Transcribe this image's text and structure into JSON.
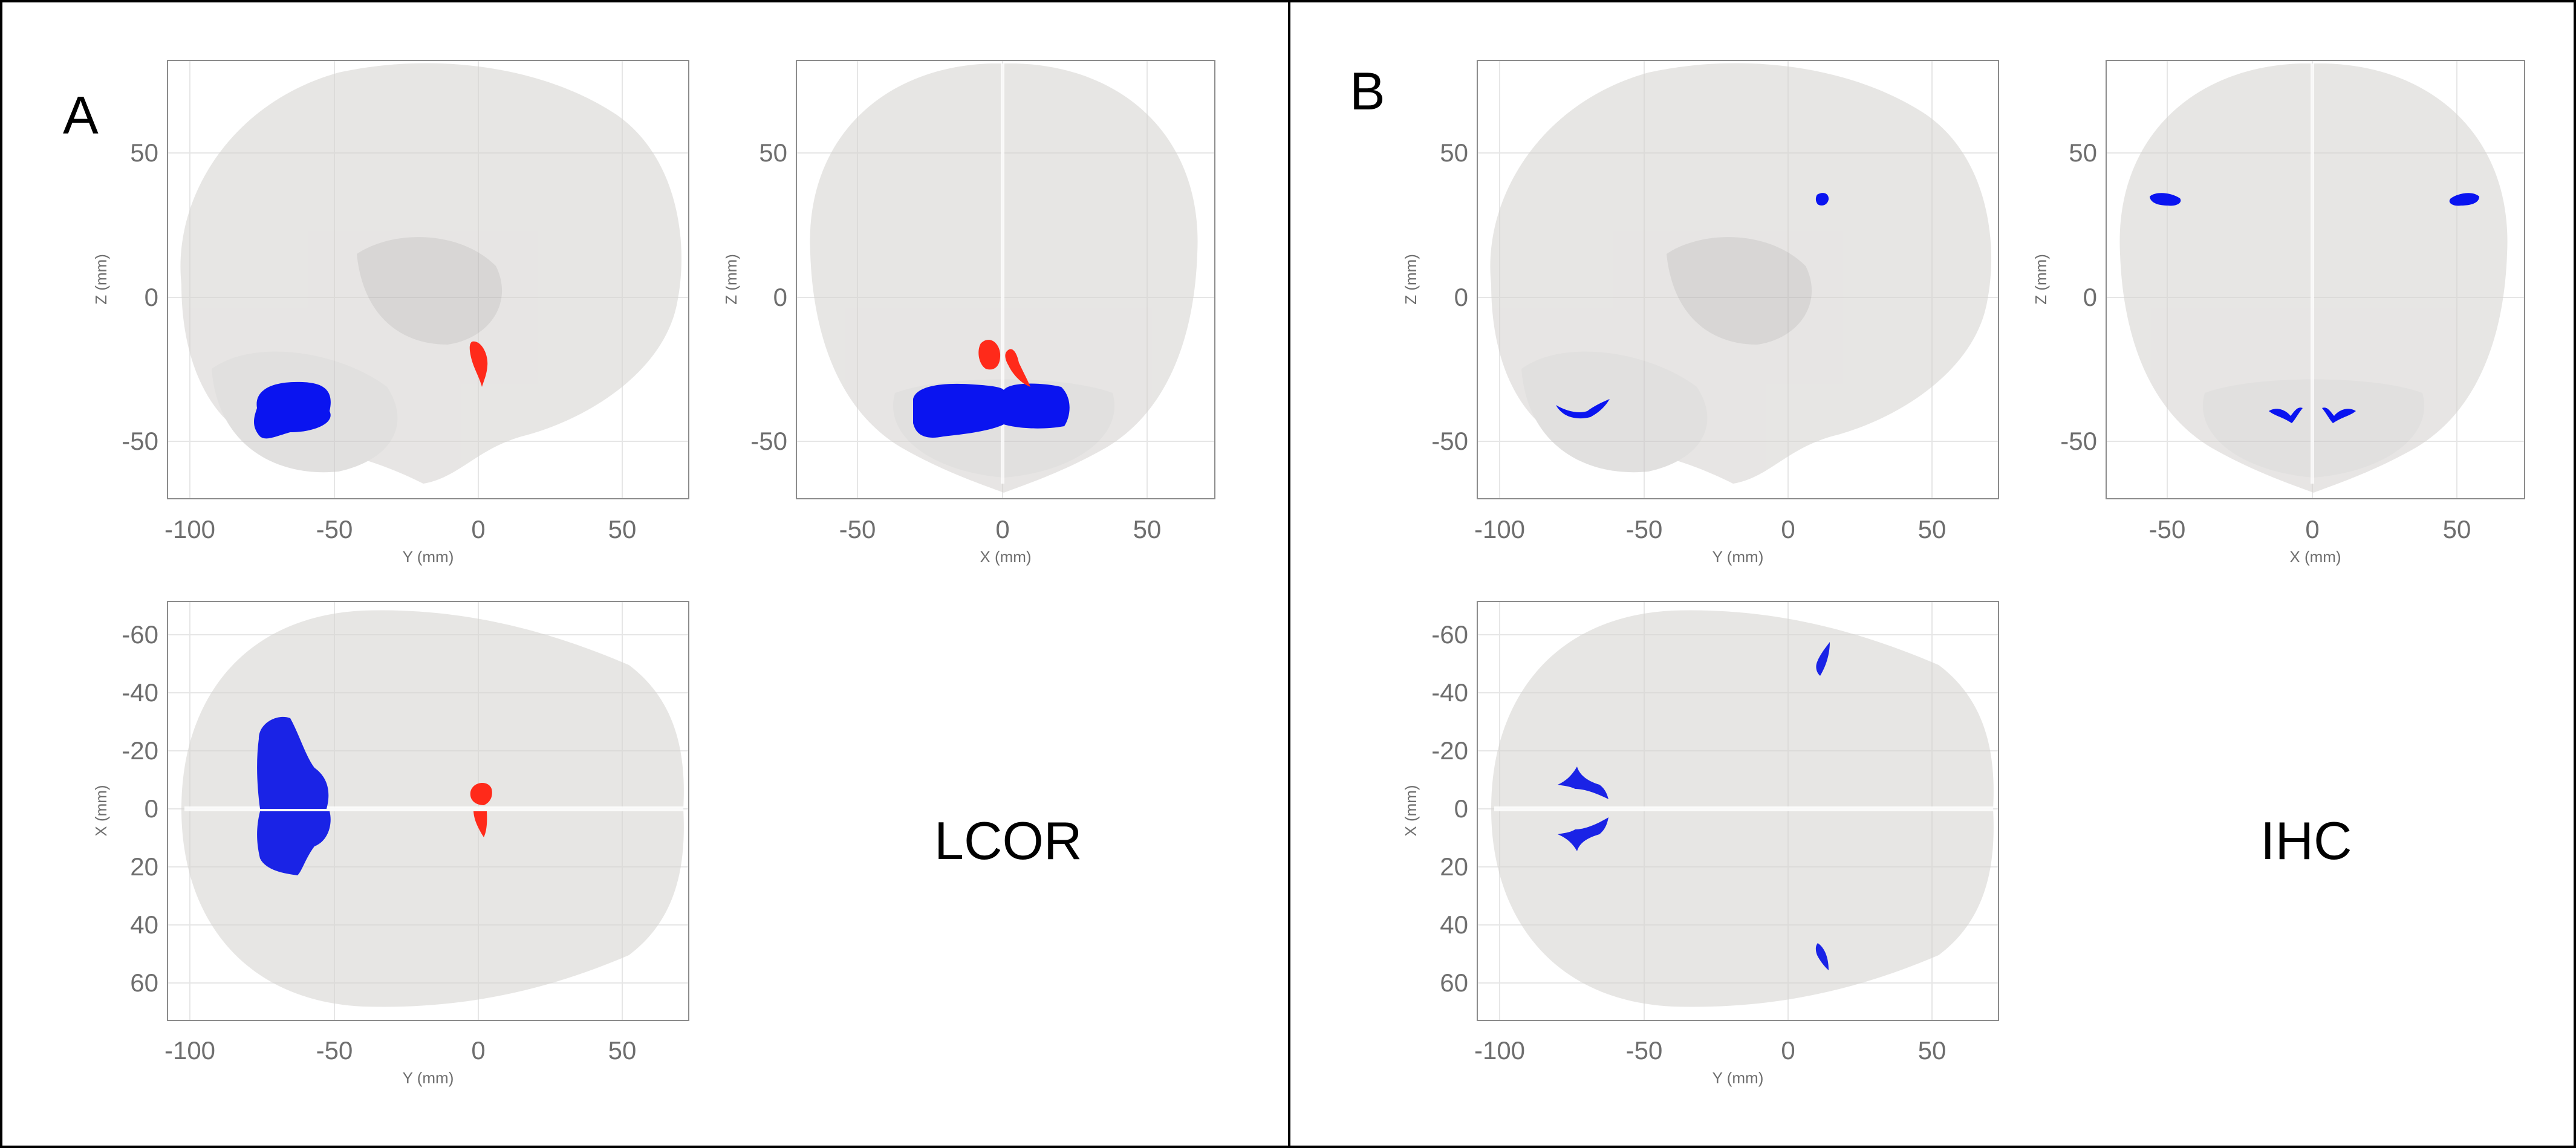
{
  "panels": [
    {
      "letter": "A",
      "condition": "LCOR",
      "views": {
        "sagittal": {
          "xlabel": "Y (mm)",
          "ylabel": "Z (mm)",
          "xticks": [
            "-100",
            "-50",
            "0",
            "50"
          ],
          "yticks": [
            "50",
            "0",
            "-50"
          ]
        },
        "coronal": {
          "xlabel": "X (mm)",
          "ylabel": "Z (mm)",
          "xticks": [
            "-50",
            "0",
            "50"
          ],
          "yticks": [
            "50",
            "0",
            "-50"
          ]
        },
        "axial": {
          "xlabel": "Y (mm)",
          "ylabel": "X (mm)",
          "xticks": [
            "-100",
            "-50",
            "0",
            "50"
          ],
          "yticks": [
            "-60",
            "-40",
            "-20",
            "0",
            "20",
            "40",
            "60"
          ]
        }
      }
    },
    {
      "letter": "B",
      "condition": "IHC",
      "views": {
        "sagittal": {
          "xlabel": "Y (mm)",
          "ylabel": "Z (mm)",
          "xticks": [
            "-100",
            "-50",
            "0",
            "50"
          ],
          "yticks": [
            "50",
            "0",
            "-50"
          ]
        },
        "coronal": {
          "xlabel": "X (mm)",
          "ylabel": "Z (mm)",
          "xticks": [
            "-50",
            "0",
            "50"
          ],
          "yticks": [
            "50",
            "0",
            "-50"
          ]
        },
        "axial": {
          "xlabel": "Y (mm)",
          "ylabel": "X (mm)",
          "xticks": [
            "-100",
            "-50",
            "0",
            "50"
          ],
          "yticks": [
            "-60",
            "-40",
            "-20",
            "0",
            "20",
            "40",
            "60"
          ]
        }
      }
    }
  ],
  "colors": {
    "positive_cluster": "#ff2a1a",
    "negative_cluster": "#0a14f0",
    "brain_surface": "#d9d6d3",
    "axis": "#6e6e6e"
  }
}
